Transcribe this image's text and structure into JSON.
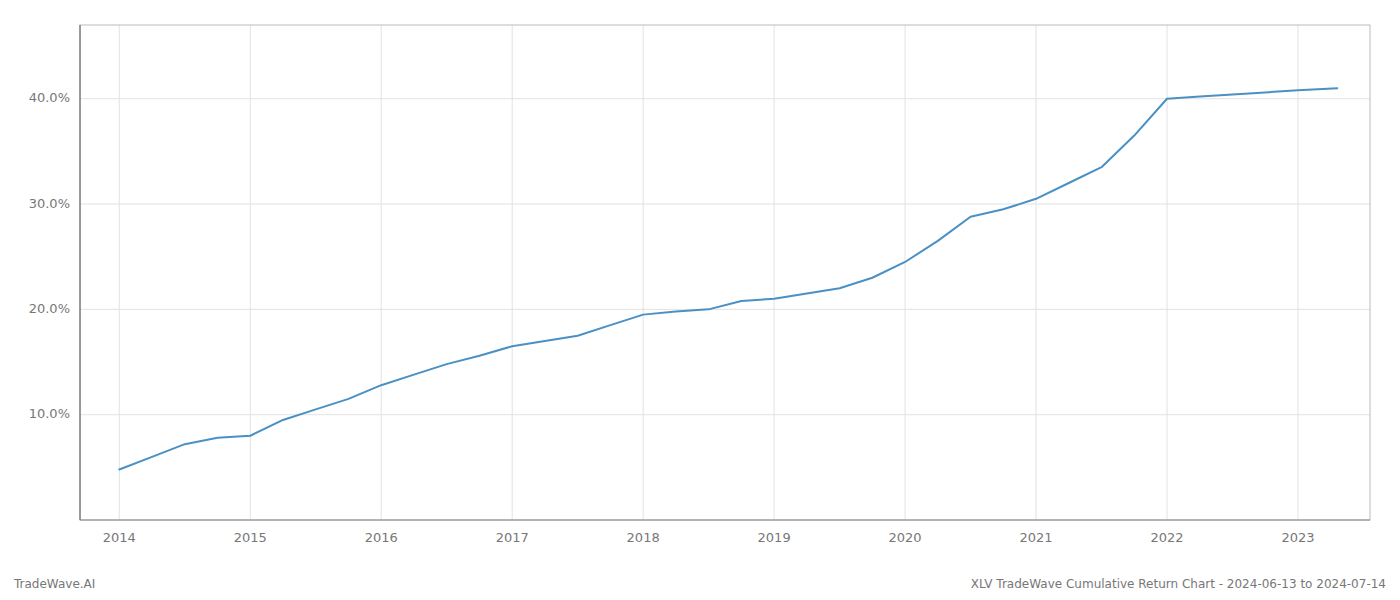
{
  "chart_data": {
    "type": "line",
    "title": "XLV TradeWave Cumulative Return Chart - 2024-06-13 to 2024-07-14",
    "annotations": [
      "TradeWave.AI"
    ],
    "color": "#4a90c4",
    "grid": true,
    "x": [
      2014.0,
      2014.25,
      2014.5,
      2014.75,
      2015.0,
      2015.25,
      2015.5,
      2015.75,
      2016.0,
      2016.25,
      2016.5,
      2016.75,
      2017.0,
      2017.25,
      2017.5,
      2017.75,
      2018.0,
      2018.25,
      2018.5,
      2018.75,
      2019.0,
      2019.25,
      2019.5,
      2019.75,
      2020.0,
      2020.25,
      2020.5,
      2020.75,
      2021.0,
      2021.25,
      2021.5,
      2021.75,
      2022.0,
      2022.25,
      2022.5,
      2022.75,
      2023.0,
      2023.3
    ],
    "values": [
      4.8,
      6.0,
      7.2,
      7.8,
      8.0,
      9.5,
      10.5,
      11.5,
      12.8,
      13.8,
      14.8,
      15.6,
      16.5,
      17.0,
      17.5,
      18.5,
      19.5,
      19.8,
      20.0,
      20.8,
      21.0,
      21.5,
      22.0,
      23.0,
      24.5,
      26.5,
      28.8,
      29.5,
      30.5,
      32.0,
      33.5,
      36.5,
      40.0,
      40.2,
      40.4,
      40.6,
      40.8,
      41.0
    ],
    "xlim": [
      2013.7,
      2023.55
    ],
    "ylim": [
      0,
      47
    ],
    "xticks": [
      2014,
      2015,
      2016,
      2017,
      2018,
      2019,
      2020,
      2021,
      2022,
      2023
    ],
    "yticks": [
      {
        "value": 10.0,
        "label": "10.0%"
      },
      {
        "value": 20.0,
        "label": "20.0%"
      },
      {
        "value": 30.0,
        "label": "30.0%"
      },
      {
        "value": 40.0,
        "label": "40.0%"
      }
    ]
  }
}
